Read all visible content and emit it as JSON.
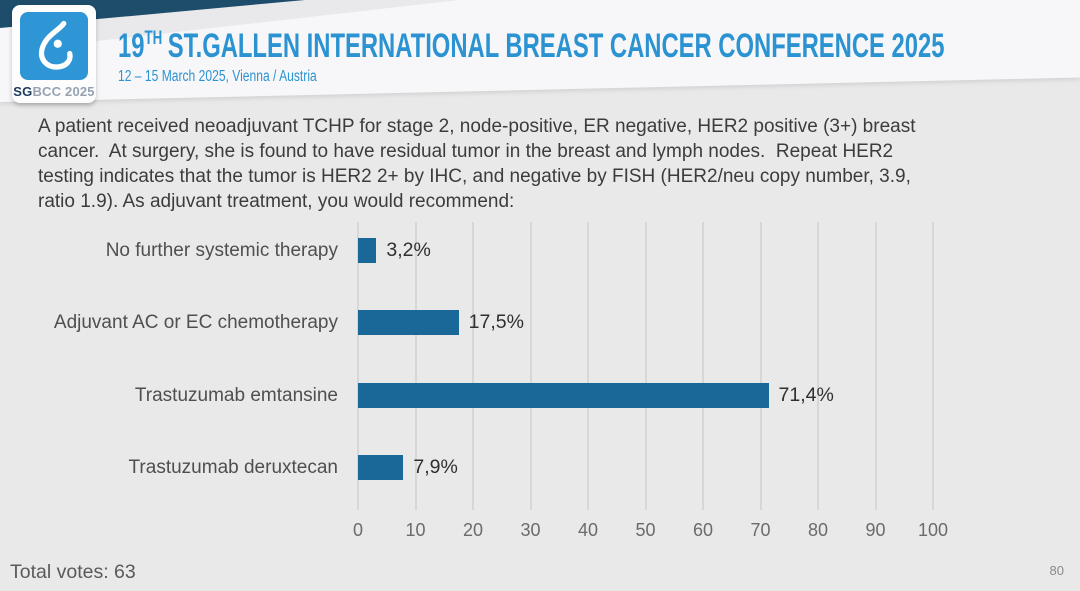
{
  "header": {
    "logo": {
      "brand_bold": "SG",
      "brand_rest": "BCC 2025"
    },
    "title_number": "19",
    "title_superscript": "TH",
    "title_text": "ST.GALLEN INTERNATIONAL BREAST CANCER CONFERENCE 2025",
    "subtitle": "12 – 15 March 2025, Vienna / Austria",
    "accent_color": "#2b93d1",
    "corner_color": "#1d4d6b"
  },
  "question": {
    "lines": [
      "A patient received neoadjuvant TCHP for stage 2, node-positive, ER negative, HER2 positive (3+) breast",
      "cancer.  At surgery, she is found to have residual tumor in the breast and lymph nodes.  Repeat HER2",
      "testing indicates that the tumor is HER2 2+ by IHC, and negative by FISH (HER2/neu copy number, 3.9,",
      "ratio 1.9). As adjuvant treatment, you would recommend:"
    ]
  },
  "chart_data": {
    "type": "bar",
    "orientation": "horizontal",
    "title": "",
    "categories": [
      "No further systemic therapy",
      "Adjuvant AC or EC chemotherapy",
      "Trastuzumab emtansine",
      "Trastuzumab deruxtecan"
    ],
    "values": [
      3.2,
      17.5,
      71.4,
      7.9
    ],
    "value_labels": [
      "3,2%",
      "17,5%",
      "71,4%",
      "7,9%"
    ],
    "xlim": [
      0,
      100
    ],
    "x_ticks": [
      0,
      10,
      20,
      30,
      40,
      50,
      60,
      70,
      80,
      90,
      100
    ],
    "grid": true,
    "legend": false,
    "bar_color": "#1a6898",
    "gridline_color": "#d7d7d9"
  },
  "footer": {
    "total_votes_label": "Total votes: 63",
    "page_number": "80"
  }
}
